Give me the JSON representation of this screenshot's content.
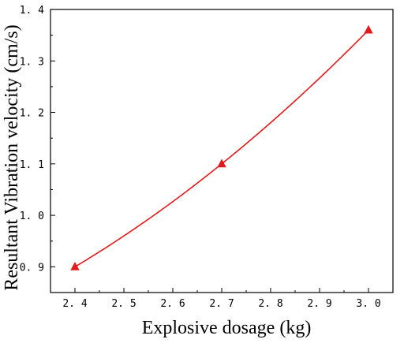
{
  "chart_data": {
    "type": "line",
    "title": "",
    "xlabel": "Explosive dosage  (kg)",
    "ylabel": "Resultant Vibration velocity (cm/s)",
    "xlim": [
      2.35,
      3.05
    ],
    "ylim": [
      0.85,
      1.4
    ],
    "x_ticks": [
      2.4,
      2.5,
      2.6,
      2.7,
      2.8,
      2.9,
      3.0
    ],
    "x_tick_labels": [
      "2. 4",
      "2. 5",
      "2. 6",
      "2. 7",
      "2. 8",
      "2. 9",
      "3. 0"
    ],
    "y_ticks": [
      0.9,
      1.0,
      1.1,
      1.2,
      1.3,
      1.4
    ],
    "y_tick_labels": [
      "0. 9",
      "1. 0",
      "1. 1",
      "1. 2",
      "1. 3",
      "1. 4"
    ],
    "grid": false,
    "legend": "none",
    "series": [
      {
        "x": [
          2.4,
          2.7,
          3.0
        ],
        "values": [
          0.9,
          1.1,
          1.36
        ],
        "color": "#e31a1c",
        "marker": "triangle",
        "smooth": true
      }
    ]
  }
}
